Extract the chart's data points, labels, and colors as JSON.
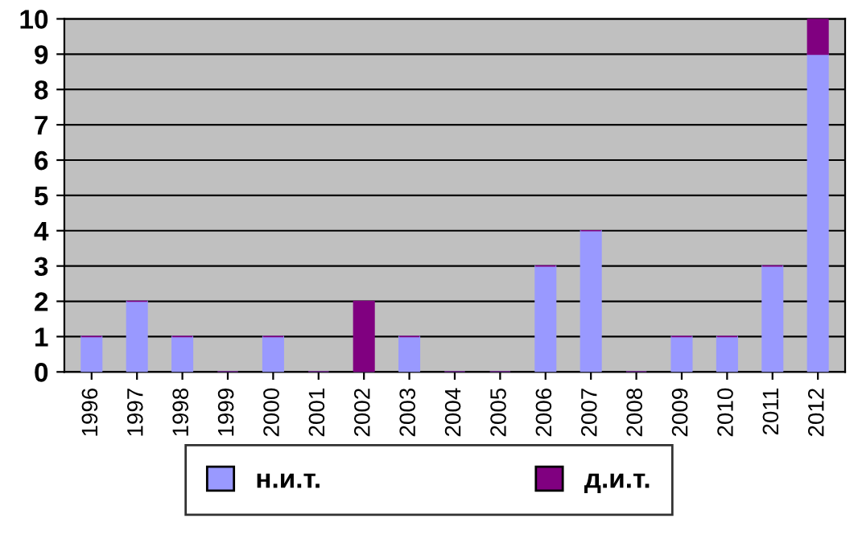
{
  "chart_data": {
    "type": "bar",
    "stacked": true,
    "categories": [
      "1996",
      "1997",
      "1998",
      "1999",
      "2000",
      "2001",
      "2002",
      "2003",
      "2004",
      "2005",
      "2006",
      "2007",
      "2008",
      "2009",
      "2010",
      "2011",
      "2012"
    ],
    "series": [
      {
        "name": "н.и.т.",
        "color": "#9999ff",
        "values": [
          1,
          2,
          1,
          0,
          1,
          0,
          0,
          1,
          0,
          0,
          3,
          4,
          0,
          1,
          1,
          3,
          9
        ]
      },
      {
        "name": "д.и.т.",
        "color": "#800080",
        "values": [
          0,
          0,
          0,
          0,
          0,
          0,
          2,
          0,
          0,
          0,
          0,
          0,
          0,
          0,
          0,
          0,
          1
        ]
      }
    ],
    "ylim": [
      0,
      10
    ],
    "yticks": [
      0,
      1,
      2,
      3,
      4,
      5,
      6,
      7,
      8,
      9,
      10
    ],
    "grid": "y",
    "legend": "bottom"
  }
}
